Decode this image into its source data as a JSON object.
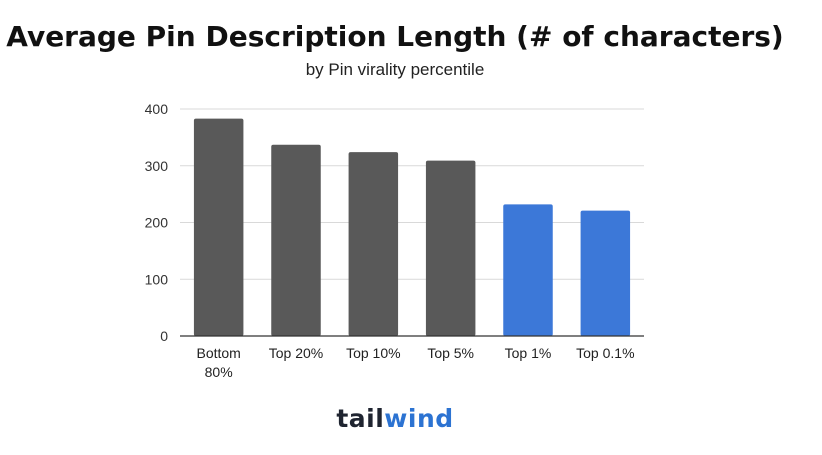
{
  "chart_data": {
    "type": "bar",
    "title": "Average Pin Description Length (# of characters)",
    "subtitle": "by Pin virality percentile",
    "xlabel": "",
    "ylabel": "",
    "categories": [
      "Bottom 80%",
      "Top 20%",
      "Top 10%",
      "Top 5%",
      "Top 1%",
      "Top 0.1%"
    ],
    "values": [
      383,
      337,
      324,
      309,
      232,
      221
    ],
    "bar_colors": [
      "#595959",
      "#595959",
      "#595959",
      "#595959",
      "#3c78d8",
      "#3c78d8"
    ],
    "ylim": [
      0,
      400
    ],
    "yticks": [
      0,
      100,
      200,
      300,
      400
    ],
    "grid": true,
    "legend": "none"
  },
  "brand": {
    "part1": "tail",
    "part2": "wind"
  }
}
